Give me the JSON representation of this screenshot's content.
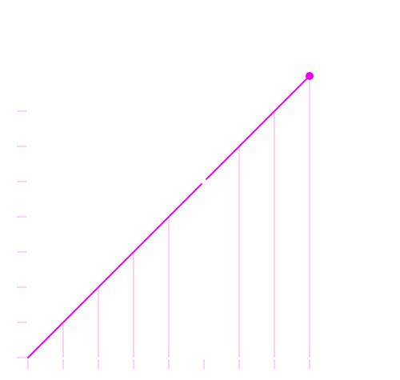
{
  "chart_data": {
    "type": "line",
    "title": "",
    "xlabel": "",
    "ylabel": "",
    "grid": false,
    "legend": "none",
    "x": [
      0,
      1,
      2,
      3,
      4,
      5,
      6,
      7,
      8
    ],
    "series": [
      {
        "values": [
          0,
          1,
          2,
          3,
          4,
          5,
          6,
          7,
          8
        ]
      }
    ],
    "xlim": [
      0,
      8
    ],
    "ylim": [
      0,
      8
    ],
    "x_ticks": [
      0,
      1,
      2,
      3,
      4,
      5,
      6,
      7,
      8
    ],
    "y_ticks": [
      0,
      1,
      2,
      3,
      4,
      5,
      6,
      7
    ],
    "drop_lines": true,
    "missing_drop_line_at_x": [
      5
    ],
    "gap_at_x": 5,
    "endpoint_marker": "last",
    "colors": {
      "line": "#ee00ee",
      "drop_line": "#f3a6f3",
      "tick": "#f3a6f3",
      "marker": "#ee00ee",
      "background": "#ffffff"
    }
  }
}
